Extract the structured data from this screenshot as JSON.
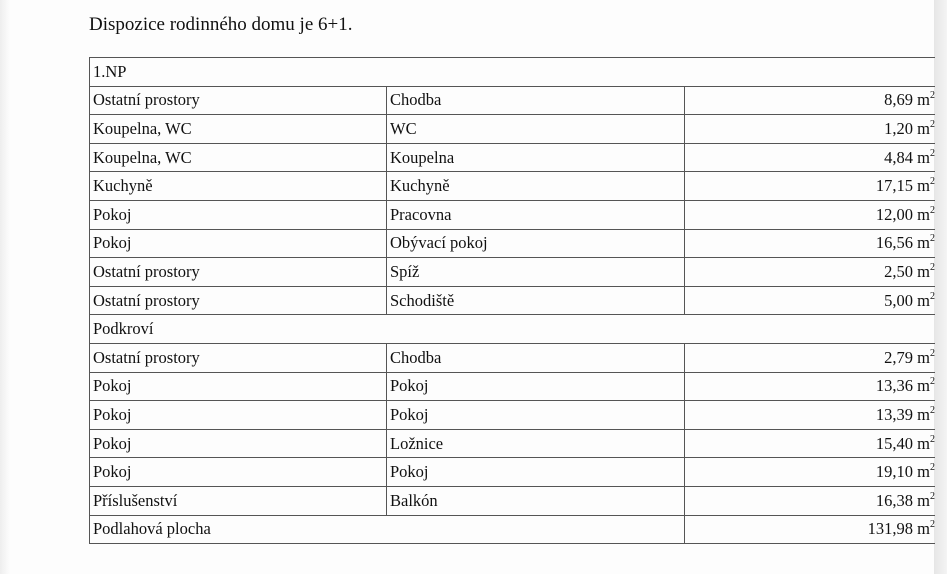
{
  "title": "Dispozice rodinného domu je 6+1.",
  "unit": "m",
  "unit_exp": "2",
  "sections": [
    {
      "name": "1.NP",
      "rows": [
        {
          "type": "Ostatní prostory",
          "room": "Chodba",
          "area": "8,69"
        },
        {
          "type": "Koupelna, WC",
          "room": "WC",
          "area": "1,20"
        },
        {
          "type": "Koupelna, WC",
          "room": "Koupelna",
          "area": "4,84"
        },
        {
          "type": "Kuchyně",
          "room": "Kuchyně",
          "area": "17,15"
        },
        {
          "type": "Pokoj",
          "room": "Pracovna",
          "area": "12,00"
        },
        {
          "type": "Pokoj",
          "room": "Obývací pokoj",
          "area": "16,56"
        },
        {
          "type": "Ostatní prostory",
          "room": "Spíž",
          "area": "2,50"
        },
        {
          "type": "Ostatní prostory",
          "room": "Schodiště",
          "area": "5,00"
        }
      ]
    },
    {
      "name": "Podkroví",
      "rows": [
        {
          "type": "Ostatní prostory",
          "room": "Chodba",
          "area": "2,79"
        },
        {
          "type": "Pokoj",
          "room": "Pokoj",
          "area": "13,36"
        },
        {
          "type": "Pokoj",
          "room": "Pokoj",
          "area": "13,39"
        },
        {
          "type": "Pokoj",
          "room": "Ložnice",
          "area": "15,40"
        },
        {
          "type": "Pokoj",
          "room": "Pokoj",
          "area": "19,10"
        },
        {
          "type": "Příslušenství",
          "room": "Balkón",
          "area": "16,38"
        }
      ]
    }
  ],
  "total": {
    "label": "Podlahová plocha",
    "area": "131,98"
  }
}
